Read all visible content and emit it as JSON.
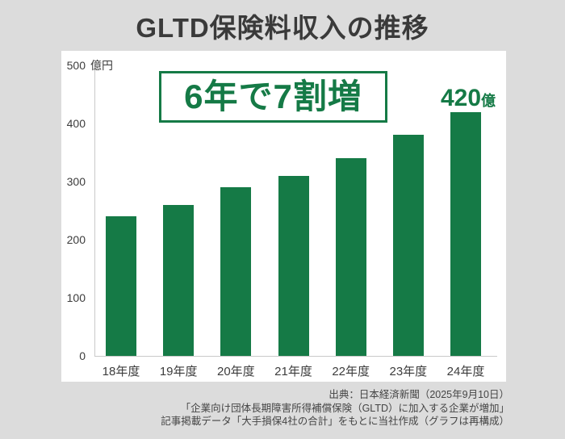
{
  "title": "GLTD保険料収入の推移",
  "chart_data": {
    "type": "bar",
    "title": "GLTD保険料収入の推移",
    "categories": [
      "18年度",
      "19年度",
      "20年度",
      "21年度",
      "22年度",
      "23年度",
      "24年度"
    ],
    "values": [
      240,
      260,
      290,
      310,
      340,
      380,
      420
    ],
    "xlabel": "",
    "ylabel": "億円",
    "y_unit_label": "億円",
    "y_ticks": [
      0,
      100,
      200,
      300,
      400,
      500
    ],
    "ylim": [
      0,
      500
    ],
    "grid": false,
    "legend": "none",
    "bar_color": "#157a46",
    "annotation": "6年で7割増",
    "last_bar_value_label": {
      "number": "420",
      "unit": "億"
    }
  },
  "colors": {
    "background": "#dcdcdc",
    "panel": "#ffffff",
    "bar_green": "#157a46",
    "accent_green": "#157a46",
    "title_text": "#3a3a3a",
    "axis_line": "#c9c9c9"
  },
  "footer": {
    "lines": [
      "出典：日本経済新聞（2025年9月10日）",
      "「企業向け団体長期障害所得補償保険（GLTD）に加入する企業が増加」",
      "記事掲載データ「大手損保4社の合計」をもとに当社作成（グラフは再構成）"
    ]
  }
}
